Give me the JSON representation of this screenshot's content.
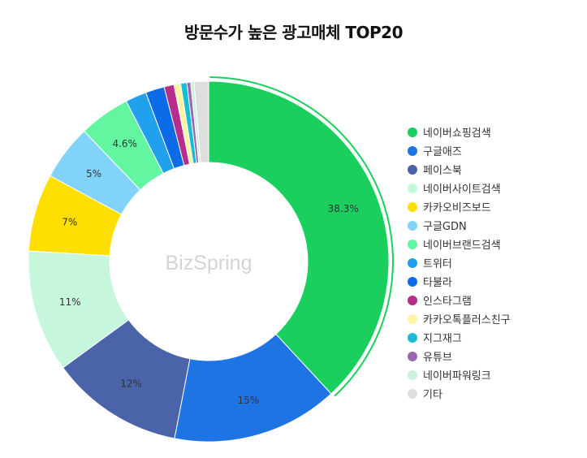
{
  "chart_data": {
    "type": "pie",
    "title": "방문수가 높은 광고매체 TOP20",
    "watermark": "BizSpring",
    "legend_position": "right",
    "slices": [
      {
        "label": "네이버쇼핑검색",
        "value": 38.3,
        "color": "#1bcf5f",
        "value_label": "38.3%"
      },
      {
        "label": "구글애즈",
        "value": 15,
        "color": "#1f74e4",
        "value_label": "15%"
      },
      {
        "label": "페이스북",
        "value": 12,
        "color": "#4a63a9",
        "value_label": "12%"
      },
      {
        "label": "네이버사이트검색",
        "value": 11,
        "color": "#c6f6dc",
        "value_label": "11%"
      },
      {
        "label": "카카오비즈보드",
        "value": 7,
        "color": "#ffdf00",
        "value_label": "7%"
      },
      {
        "label": "구글GDN",
        "value": 5,
        "color": "#82d3fa",
        "value_label": "5%"
      },
      {
        "label": "네이버브랜드검색",
        "value": 4.6,
        "color": "#63f6a1",
        "value_label": "4.6%"
      },
      {
        "label": "트위터",
        "value": 1.9,
        "color": "#21a0ee",
        "value_label": ""
      },
      {
        "label": "타불라",
        "value": 1.7,
        "color": "#0c6ce8",
        "value_label": ""
      },
      {
        "label": "인스타그램",
        "value": 0.9,
        "color": "#b62d8c",
        "value_label": ""
      },
      {
        "label": "카카오톡플러스친구",
        "value": 0.6,
        "color": "#fff3a6",
        "value_label": ""
      },
      {
        "label": "지그재그",
        "value": 0.55,
        "color": "#18bcd6",
        "value_label": ""
      },
      {
        "label": "유튜브",
        "value": 0.35,
        "color": "#9b69b4",
        "value_label": ""
      },
      {
        "label": "네이버파워링크",
        "value": 0.3,
        "color": "#c9f2dc",
        "value_label": ""
      },
      {
        "label": "기타",
        "value": 1.3,
        "color": "#dedede",
        "value_label": ""
      }
    ]
  }
}
